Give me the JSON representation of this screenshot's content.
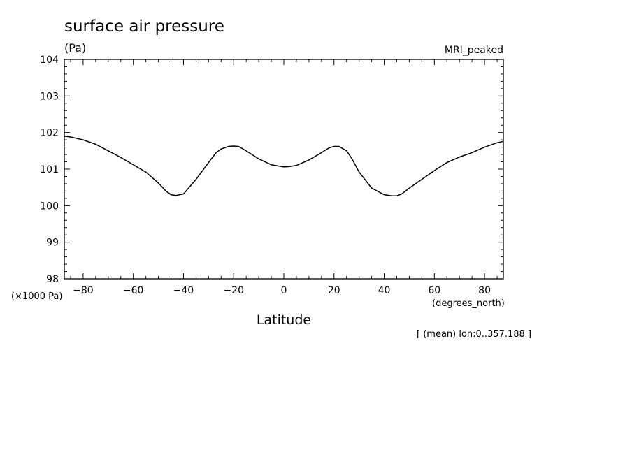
{
  "chart_data": {
    "type": "line",
    "title": "surface air pressure",
    "units": "(Pa)",
    "model_label": "MRI_peaked",
    "xlabel": "Latitude",
    "x_unit": "(degrees_north)",
    "y_scale_note": "(×1000 Pa)",
    "footnote": "[ (mean) lon:0..357.188 ]",
    "xlim": [
      -87.5,
      87.5
    ],
    "ylim": [
      98,
      104
    ],
    "x_ticks": [
      "−80",
      "−60",
      "−40",
      "−20",
      "0",
      "20",
      "40",
      "60",
      "80"
    ],
    "y_ticks": [
      "98",
      "99",
      "100",
      "101",
      "102",
      "103",
      "104"
    ],
    "grid": false,
    "series": [
      {
        "x": [
          -87.5,
          -85,
          -80,
          -75,
          -70,
          -65,
          -60,
          -55,
          -50,
          -47,
          -45,
          -43,
          -40,
          -35,
          -30,
          -27,
          -25,
          -22,
          -20,
          -18,
          -15,
          -10,
          -5,
          0,
          2,
          5,
          10,
          15,
          18,
          20,
          22,
          25,
          27,
          30,
          35,
          40,
          43,
          45,
          47,
          50,
          55,
          60,
          65,
          70,
          75,
          80,
          85,
          87.5
        ],
        "y": [
          101.9,
          101.88,
          101.8,
          101.68,
          101.5,
          101.32,
          101.12,
          100.92,
          100.62,
          100.4,
          100.3,
          100.28,
          100.32,
          100.72,
          101.18,
          101.45,
          101.55,
          101.62,
          101.63,
          101.62,
          101.5,
          101.28,
          101.12,
          101.06,
          101.07,
          101.1,
          101.25,
          101.45,
          101.58,
          101.62,
          101.62,
          101.5,
          101.3,
          100.92,
          100.48,
          100.3,
          100.27,
          100.27,
          100.32,
          100.48,
          100.72,
          100.96,
          101.18,
          101.33,
          101.45,
          101.6,
          101.72,
          101.76
        ]
      }
    ]
  }
}
